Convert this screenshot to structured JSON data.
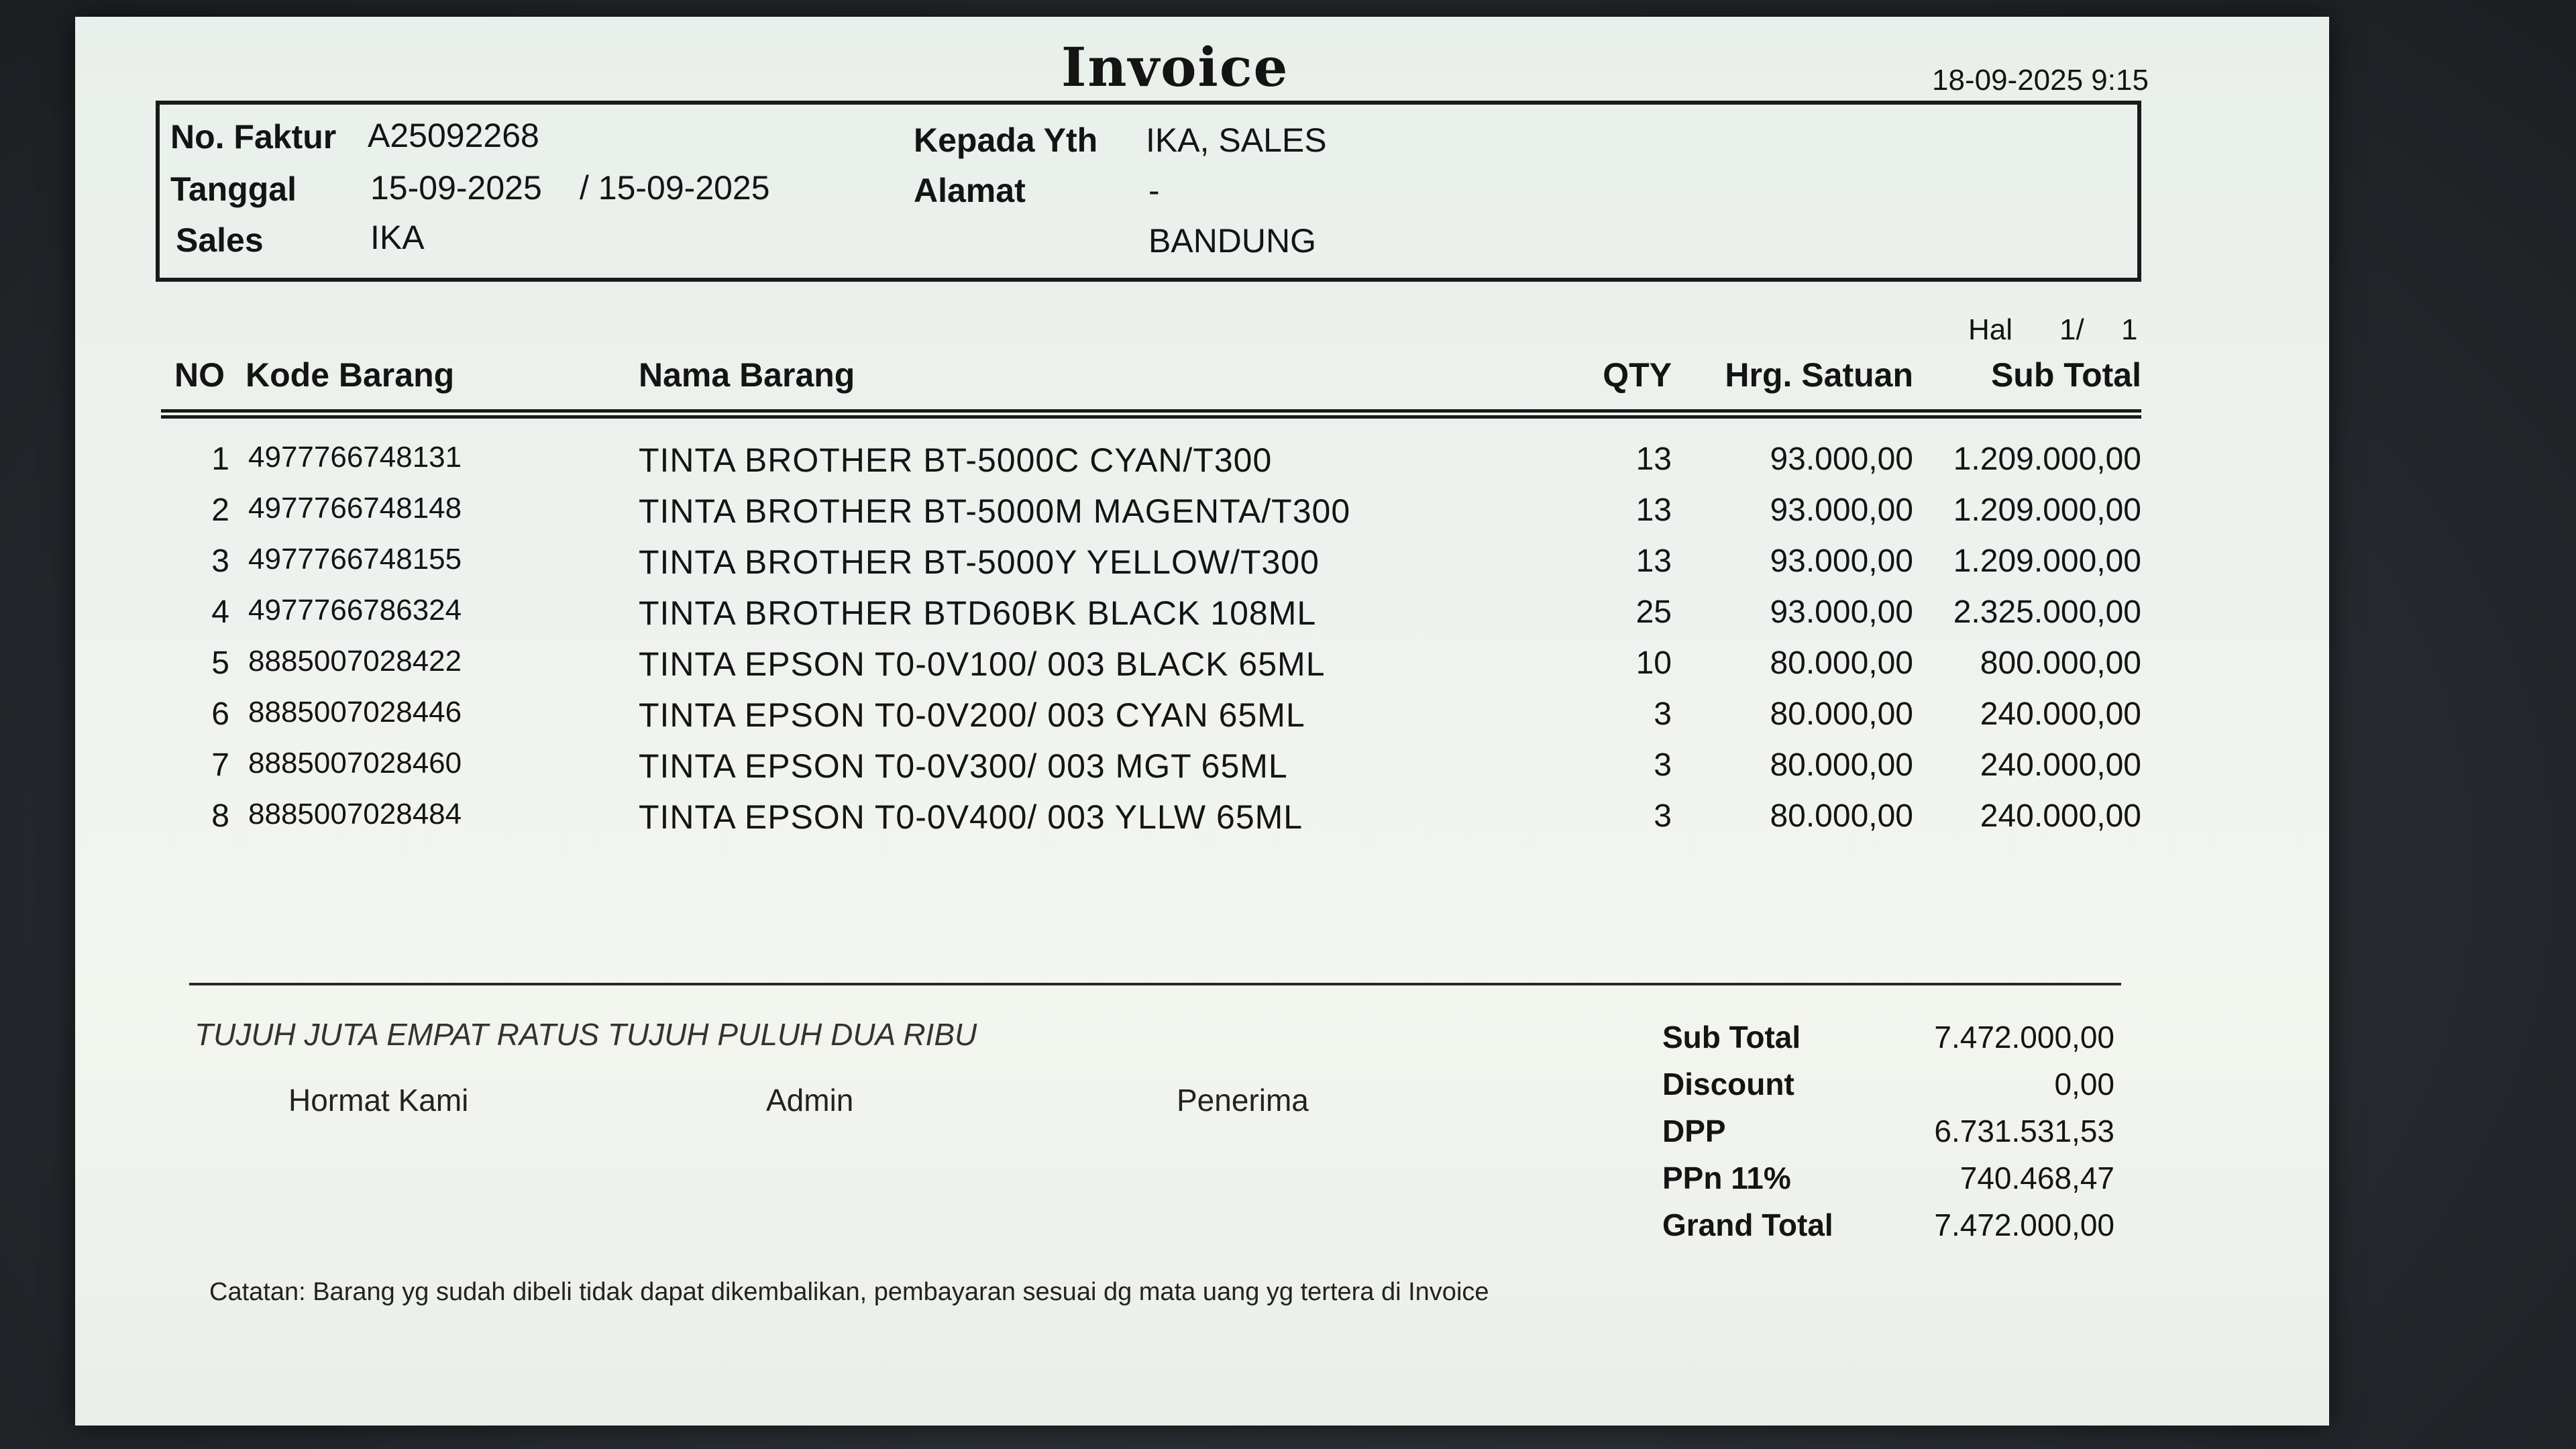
{
  "invoice": {
    "title": "Invoice",
    "printed_at": "18-09-2025 9:15",
    "header": {
      "no_faktur_label": "No. Faktur",
      "no_faktur": "A25092268",
      "tanggal_label": "Tanggal",
      "tanggal": "15-09-2025",
      "tanggal_to": "/ 15-09-2025",
      "sales_label": "Sales",
      "sales": "IKA",
      "kepada_label": "Kepada Yth",
      "kepada": "IKA, SALES",
      "alamat_label": "Alamat",
      "alamat_line1": "-",
      "alamat_line2": "BANDUNG"
    },
    "page": {
      "label": "Hal",
      "current": "1/",
      "total": "1"
    },
    "columns": {
      "no": "NO",
      "kode": "Kode Barang",
      "nama": "Nama Barang",
      "qty": "QTY",
      "harga": "Hrg. Satuan",
      "subtotal": "Sub Total"
    },
    "items": [
      {
        "no": "1",
        "kode": "4977766748131",
        "nama": "TINTA BROTHER BT-5000C CYAN/T300",
        "qty": "13",
        "harga": "93.000,00",
        "subtotal": "1.209.000,00"
      },
      {
        "no": "2",
        "kode": "4977766748148",
        "nama": "TINTA BROTHER BT-5000M MAGENTA/T300",
        "qty": "13",
        "harga": "93.000,00",
        "subtotal": "1.209.000,00"
      },
      {
        "no": "3",
        "kode": "4977766748155",
        "nama": "TINTA BROTHER BT-5000Y YELLOW/T300",
        "qty": "13",
        "harga": "93.000,00",
        "subtotal": "1.209.000,00"
      },
      {
        "no": "4",
        "kode": "4977766786324",
        "nama": "TINTA BROTHER BTD60BK BLACK 108ML",
        "qty": "25",
        "harga": "93.000,00",
        "subtotal": "2.325.000,00"
      },
      {
        "no": "5",
        "kode": "8885007028422",
        "nama": "TINTA EPSON T0-0V100/ 003 BLACK 65ML",
        "qty": "10",
        "harga": "80.000,00",
        "subtotal": "800.000,00"
      },
      {
        "no": "6",
        "kode": "8885007028446",
        "nama": "TINTA EPSON T0-0V200/ 003 CYAN 65ML",
        "qty": "3",
        "harga": "80.000,00",
        "subtotal": "240.000,00"
      },
      {
        "no": "7",
        "kode": "8885007028460",
        "nama": "TINTA EPSON T0-0V300/ 003 MGT 65ML",
        "qty": "3",
        "harga": "80.000,00",
        "subtotal": "240.000,00"
      },
      {
        "no": "8",
        "kode": "8885007028484",
        "nama": "TINTA EPSON T0-0V400/ 003 YLLW 65ML",
        "qty": "3",
        "harga": "80.000,00",
        "subtotal": "240.000,00"
      }
    ],
    "terbilang": "TUJUH JUTA EMPAT RATUS TUJUH PULUH DUA RIBU",
    "signatures": {
      "hormat": "Hormat Kami",
      "admin": "Admin",
      "penerima": "Penerima"
    },
    "totals": {
      "subtotal_label": "Sub Total",
      "subtotal": "7.472.000,00",
      "discount_label": "Discount",
      "discount": "0,00",
      "dpp_label": "DPP",
      "dpp": "6.731.531,53",
      "ppn_label": "PPn 11%",
      "ppn": "740.468,47",
      "grand_label": "Grand Total",
      "grand": "7.472.000,00"
    },
    "note": "Catatan: Barang yg sudah dibeli tidak dapat dikembalikan, pembayaran sesuai dg mata uang yg tertera di Invoice"
  },
  "colors": {
    "paper": "#eef2ee",
    "ink": "#141414",
    "bezel": "#2b2f33"
  }
}
